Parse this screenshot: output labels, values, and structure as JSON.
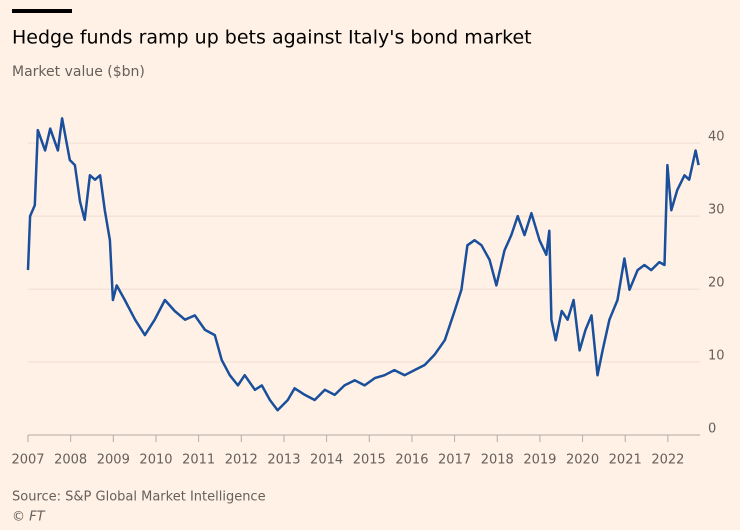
{
  "chart_data": {
    "type": "line",
    "title": "Hedge funds ramp up bets against Italy's bond market",
    "subtitle": "Market value ($bn)",
    "source": "Source: S&P Global Market Intelligence",
    "credit": "© FT",
    "x": [
      2007.0,
      2007.05,
      2007.16,
      2007.23,
      2007.4,
      2007.52,
      2007.7,
      2007.8,
      2007.98,
      2008.1,
      2008.22,
      2008.33,
      2008.45,
      2008.57,
      2008.69,
      2008.8,
      2008.92,
      2008.99,
      2009.08,
      2009.27,
      2009.51,
      2009.74,
      2009.97,
      2010.21,
      2010.44,
      2010.68,
      2010.91,
      2011.15,
      2011.38,
      2011.54,
      2011.73,
      2011.92,
      2012.08,
      2012.32,
      2012.48,
      2012.67,
      2012.85,
      2013.09,
      2013.25,
      2013.49,
      2013.72,
      2013.96,
      2014.19,
      2014.42,
      2014.66,
      2014.89,
      2015.13,
      2015.36,
      2015.59,
      2015.83,
      2016.06,
      2016.3,
      2016.53,
      2016.77,
      2017.0,
      2017.16,
      2017.3,
      2017.47,
      2017.63,
      2017.82,
      2017.98,
      2018.17,
      2018.33,
      2018.48,
      2018.64,
      2018.8,
      2018.99,
      2019.15,
      2019.22,
      2019.27,
      2019.37,
      2019.51,
      2019.65,
      2019.79,
      2019.93,
      2020.07,
      2020.21,
      2020.35,
      2020.47,
      2020.63,
      2020.82,
      2020.98,
      2021.1,
      2021.29,
      2021.45,
      2021.61,
      2021.8,
      2021.92,
      2021.99,
      2022.08,
      2022.22,
      2022.39,
      2022.5,
      2022.65,
      2022.72
    ],
    "values": [
      22.6,
      30,
      31.5,
      41.8,
      39,
      42,
      39,
      43.4,
      37.7,
      37,
      32,
      29.5,
      35.6,
      35,
      35.6,
      30.8,
      26.7,
      18.5,
      20.5,
      18.5,
      15.8,
      13.7,
      15.8,
      18.5,
      17,
      15.8,
      16.4,
      14.4,
      13.7,
      10.3,
      8.2,
      6.8,
      8.2,
      6.2,
      6.8,
      4.8,
      3.4,
      4.8,
      6.4,
      5.5,
      4.8,
      6.2,
      5.5,
      6.8,
      7.5,
      6.8,
      7.8,
      8.2,
      8.9,
      8.2,
      8.9,
      9.6,
      11,
      13,
      17,
      19.9,
      26,
      26.7,
      26,
      24,
      20.5,
      25.3,
      27.4,
      30,
      27.4,
      30.4,
      26.7,
      24.7,
      28,
      15.8,
      13,
      17,
      15.8,
      18.5,
      11.6,
      14.4,
      16.4,
      8.2,
      11.6,
      15.8,
      18.5,
      24.2,
      19.9,
      22.6,
      23.3,
      22.6,
      23.7,
      23.3,
      37,
      30.8,
      33.6,
      35.6,
      35,
      39,
      37
    ],
    "color": "#1a4f9c",
    "xlim": [
      2007,
      2022.8
    ],
    "xticks": [
      2007,
      2008,
      2009,
      2010,
      2011,
      2012,
      2013,
      2014,
      2015,
      2016,
      2017,
      2018,
      2019,
      2020,
      2021,
      2022
    ],
    "ylim": [
      0,
      44
    ],
    "yticks": [
      0,
      10,
      20,
      30,
      40
    ],
    "grid": true
  }
}
